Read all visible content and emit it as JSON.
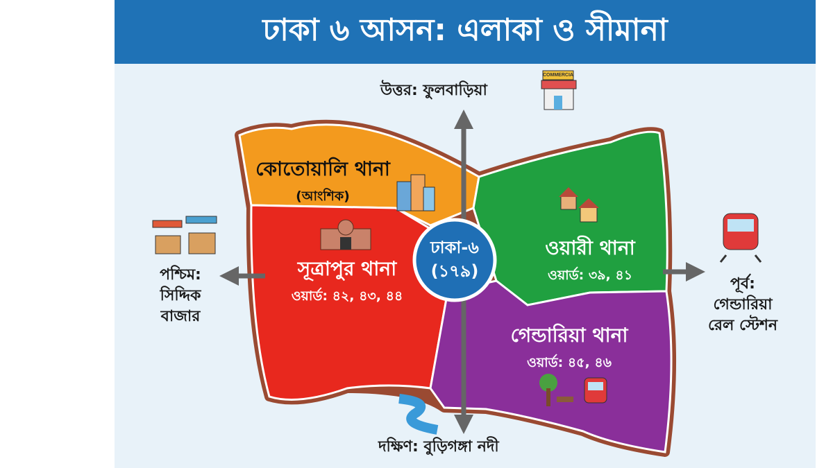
{
  "title": "ঢাকা ৬ আসন: এলাকা ও সীমানা",
  "center": {
    "name": "ঢাকা-৬",
    "number": "(১৭৯)",
    "color": "#1f6fb5"
  },
  "areas": [
    {
      "name": "কোতোয়ালি থানা",
      "note": "(আংশিক)",
      "color": "#f39a1e",
      "icon": "buildings-icon"
    },
    {
      "name": "সূত্রাপুর থানা",
      "wards": "ওয়ার্ড: ৪২, ৪৩, ৪৪",
      "color": "#e8281e",
      "icon": "mosque-icon"
    },
    {
      "name": "ওয়ারী থানা",
      "wards": "ওয়ার্ড: ৩৯, ৪১",
      "color": "#20a040",
      "icon": "houses-icon"
    },
    {
      "name": "গেন্ডারিয়া থানা",
      "wards": "ওয়ার্ড: ৪৫, ৪৬",
      "color": "#8a2f9a",
      "icon": "park-train-icon"
    }
  ],
  "boundaries": {
    "north": {
      "text": "উত্তর: ফুলবাড়িয়া",
      "icon": "shop-icon",
      "sign": "COMMERCIAL"
    },
    "west": {
      "lines": [
        "পশ্চিম:",
        "সিদ্দিক",
        "বাজার"
      ],
      "icon": "market-stall-icon"
    },
    "east": {
      "lines": [
        "পূর্ব:",
        "গেন্ডারিয়া",
        "রেল স্টেশন"
      ],
      "icon": "train-icon"
    },
    "south": {
      "text": "দক্ষিণ: বুড়িগঙ্গা নদী",
      "icon": "river-icon"
    }
  },
  "colors": {
    "banner": "#1f72b6",
    "background": "#e8f2f9",
    "arrow": "#666666",
    "border": "#9a4a32"
  }
}
